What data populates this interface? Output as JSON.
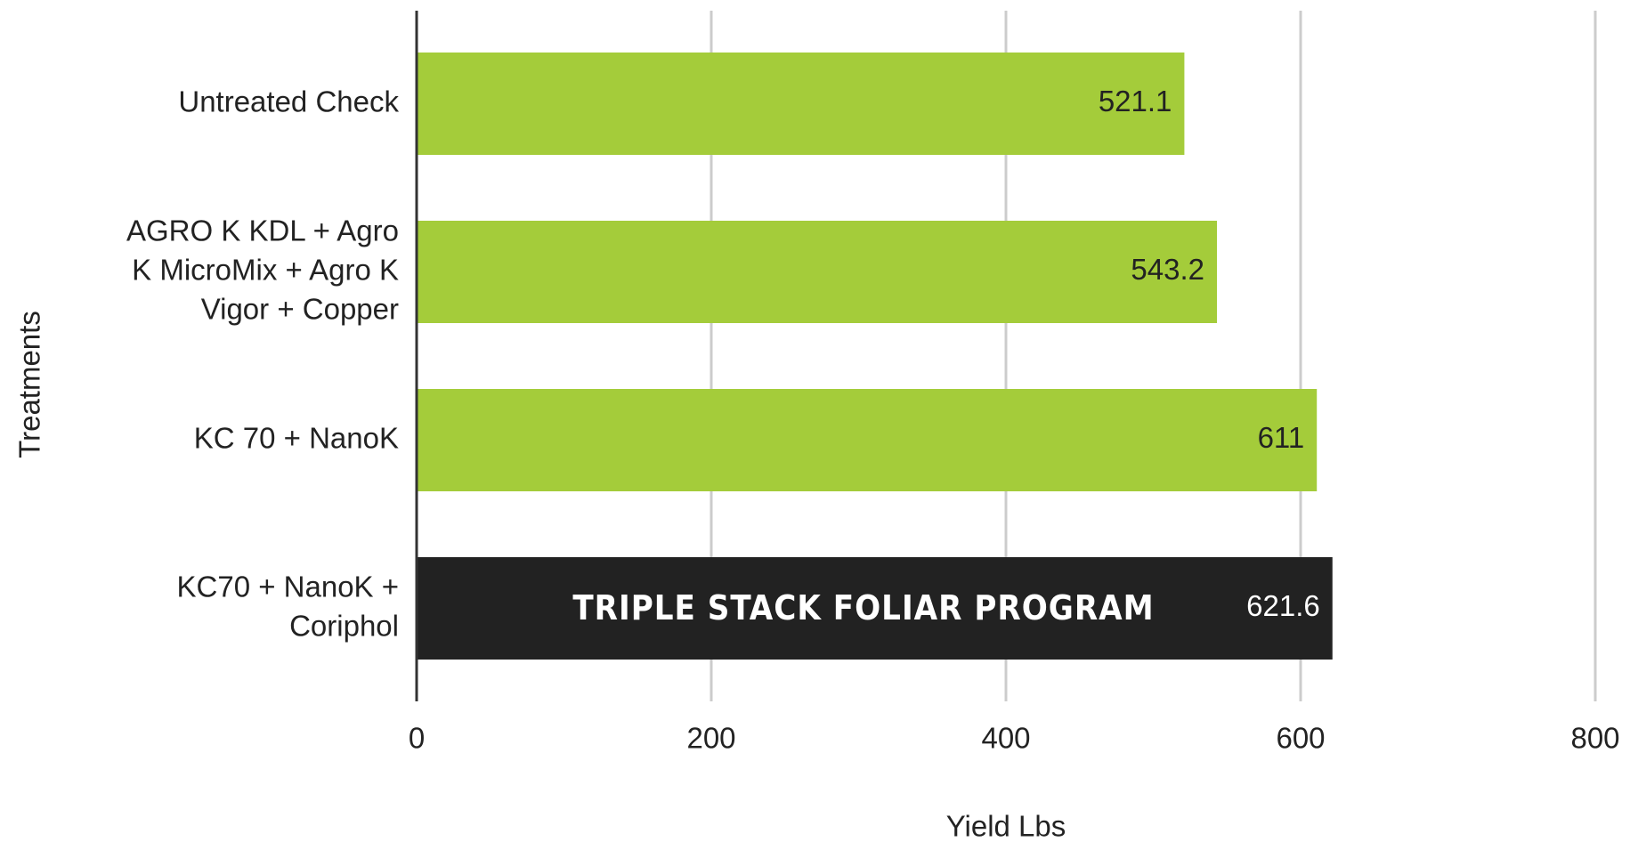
{
  "chart_data": {
    "type": "barh",
    "categories": [
      "Untreated Check",
      "AGRO K KDL + Agro K MicroMix + Agro K Vigor + Copper",
      "KC 70 + NanoK",
      "KC70 + NanoK + Coriphol"
    ],
    "values": [
      521.1,
      543.2,
      611,
      621.6
    ],
    "colors": [
      "#a4cc3a",
      "#a4cc3a",
      "#a4cc3a",
      "#222222"
    ],
    "annotation": "TRIPLE STACK FOLIAR PROGRAM",
    "xlabel": "Yield Lbs",
    "ylabel": "Treatments",
    "xlim": [
      0,
      800
    ],
    "xticks": [
      0,
      200,
      400,
      600,
      800
    ],
    "grid": true
  }
}
